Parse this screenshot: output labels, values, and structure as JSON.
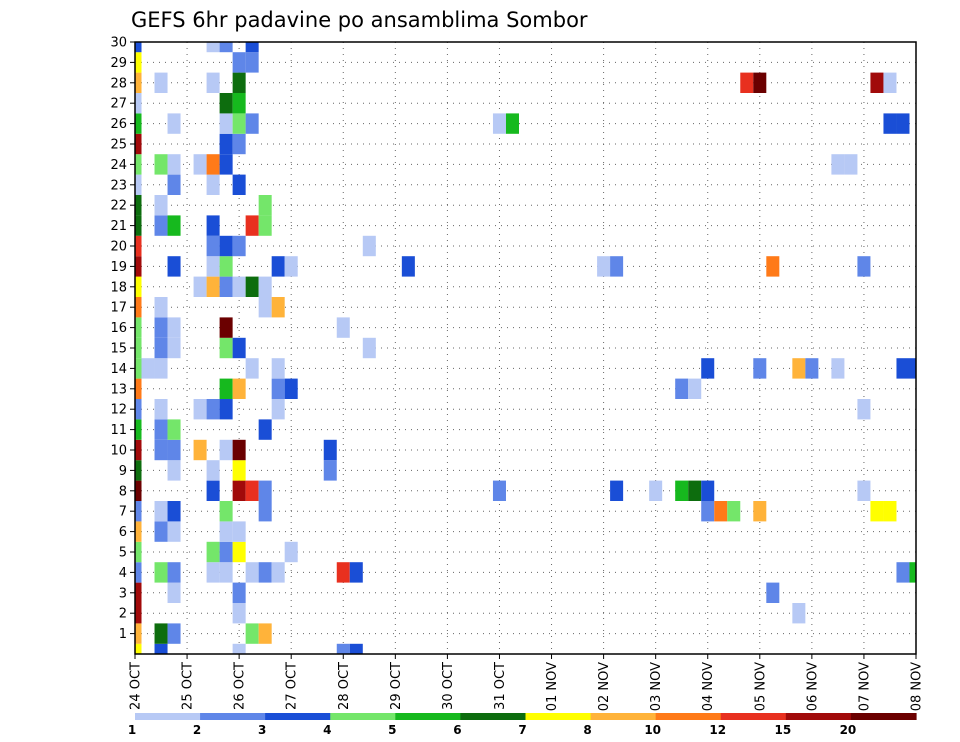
{
  "chart_data": {
    "type": "heatmap",
    "title": "GEFS 6hr padavine po ansamblima Sombor",
    "xlabel": "",
    "ylabel": "",
    "x_axis": {
      "unit": "6-hour steps from 24 OCT 00z",
      "range": [
        0,
        60
      ],
      "ticks": [
        {
          "step": 0,
          "label": "24 OCT"
        },
        {
          "step": 4,
          "label": "25 OCT"
        },
        {
          "step": 8,
          "label": "26 OCT"
        },
        {
          "step": 12,
          "label": "27 OCT"
        },
        {
          "step": 16,
          "label": "28 OCT"
        },
        {
          "step": 20,
          "label": "29 OCT"
        },
        {
          "step": 24,
          "label": "30 OCT"
        },
        {
          "step": 28,
          "label": "31 OCT"
        },
        {
          "step": 32,
          "label": "01 NOV"
        },
        {
          "step": 36,
          "label": "02 NOV"
        },
        {
          "step": 40,
          "label": "03 NOV"
        },
        {
          "step": 44,
          "label": "04 NOV"
        },
        {
          "step": 48,
          "label": "05 NOV"
        },
        {
          "step": 52,
          "label": "06 NOV"
        },
        {
          "step": 56,
          "label": "07 NOV"
        },
        {
          "step": 60,
          "label": "08 NOV"
        }
      ]
    },
    "y_axis": {
      "unit": "ensemble member",
      "range": [
        0,
        30
      ],
      "tick_labels": [
        "1",
        "2",
        "3",
        "4",
        "5",
        "6",
        "7",
        "8",
        "9",
        "10",
        "11",
        "12",
        "13",
        "14",
        "15",
        "16",
        "17",
        "18",
        "19",
        "20",
        "21",
        "22",
        "23",
        "24",
        "25",
        "26",
        "27",
        "28",
        "29",
        "30"
      ]
    },
    "grid": true,
    "colorbar": {
      "position": "bottom",
      "labels": [
        "1",
        "2",
        "3",
        "4",
        "5",
        "6",
        "7",
        "8",
        "10",
        "12",
        "15",
        "20"
      ],
      "colors": [
        "#b7c9f5",
        "#5f86e8",
        "#1a4ed6",
        "#74e66a",
        "#16b91e",
        "#0d6d0e",
        "#ffff00",
        "#ffb33a",
        "#ff7a18",
        "#e8301f",
        "#a10a0a",
        "#6b0000"
      ]
    },
    "cells": [
      [
        0,
        0,
        6
      ],
      [
        2,
        0,
        2
      ],
      [
        8,
        0,
        0
      ],
      [
        16,
        0,
        1
      ],
      [
        17,
        0,
        2
      ],
      [
        0,
        1,
        7
      ],
      [
        2,
        1,
        5
      ],
      [
        3,
        1,
        1
      ],
      [
        9,
        1,
        3
      ],
      [
        10,
        1,
        7
      ],
      [
        0,
        2,
        10
      ],
      [
        8,
        2,
        0
      ],
      [
        8,
        3,
        1
      ],
      [
        51,
        2,
        0
      ],
      [
        0,
        3,
        10
      ],
      [
        3,
        3,
        0
      ],
      [
        49,
        3,
        1
      ],
      [
        0,
        4,
        1
      ],
      [
        2,
        4,
        3
      ],
      [
        3,
        4,
        1
      ],
      [
        6,
        4,
        0
      ],
      [
        7,
        4,
        0
      ],
      [
        9,
        4,
        0
      ],
      [
        10,
        4,
        1
      ],
      [
        11,
        4,
        0
      ],
      [
        16,
        4,
        9
      ],
      [
        17,
        4,
        2
      ],
      [
        59,
        4,
        1
      ],
      [
        60,
        4,
        4
      ],
      [
        0,
        5,
        3
      ],
      [
        6,
        5,
        3
      ],
      [
        7,
        5,
        1
      ],
      [
        8,
        5,
        6
      ],
      [
        12,
        5,
        0
      ],
      [
        0,
        6,
        7
      ],
      [
        2,
        6,
        1
      ],
      [
        3,
        6,
        0
      ],
      [
        7,
        6,
        0
      ],
      [
        8,
        6,
        0
      ],
      [
        0,
        7,
        1
      ],
      [
        2,
        7,
        0
      ],
      [
        3,
        7,
        2
      ],
      [
        7,
        7,
        3
      ],
      [
        10,
        7,
        1
      ],
      [
        44,
        7,
        1
      ],
      [
        45,
        7,
        8
      ],
      [
        46,
        7,
        3
      ],
      [
        48,
        7,
        7
      ],
      [
        57,
        7,
        6
      ],
      [
        58,
        7,
        6
      ],
      [
        0,
        8,
        11
      ],
      [
        6,
        8,
        2
      ],
      [
        8,
        8,
        10
      ],
      [
        9,
        8,
        9
      ],
      [
        10,
        8,
        1
      ],
      [
        28,
        8,
        1
      ],
      [
        37,
        8,
        2
      ],
      [
        40,
        8,
        0
      ],
      [
        42,
        8,
        4
      ],
      [
        43,
        8,
        5
      ],
      [
        44,
        8,
        2
      ],
      [
        56,
        8,
        0
      ],
      [
        0,
        9,
        5
      ],
      [
        3,
        9,
        0
      ],
      [
        6,
        9,
        0
      ],
      [
        8,
        9,
        6
      ],
      [
        15,
        9,
        1
      ],
      [
        0,
        10,
        10
      ],
      [
        2,
        10,
        1
      ],
      [
        3,
        10,
        1
      ],
      [
        5,
        10,
        7
      ],
      [
        7,
        10,
        0
      ],
      [
        8,
        10,
        11
      ],
      [
        15,
        10,
        2
      ],
      [
        0,
        11,
        4
      ],
      [
        2,
        11,
        1
      ],
      [
        3,
        11,
        3
      ],
      [
        10,
        11,
        2
      ],
      [
        0,
        12,
        1
      ],
      [
        2,
        12,
        0
      ],
      [
        5,
        12,
        0
      ],
      [
        6,
        12,
        1
      ],
      [
        7,
        12,
        2
      ],
      [
        11,
        12,
        0
      ],
      [
        56,
        12,
        0
      ],
      [
        0,
        13,
        8
      ],
      [
        7,
        13,
        4
      ],
      [
        8,
        13,
        7
      ],
      [
        11,
        13,
        1
      ],
      [
        12,
        13,
        2
      ],
      [
        42,
        13,
        1
      ],
      [
        43,
        13,
        0
      ],
      [
        0,
        14,
        3
      ],
      [
        1,
        14,
        0
      ],
      [
        2,
        14,
        0
      ],
      [
        9,
        14,
        0
      ],
      [
        11,
        14,
        0
      ],
      [
        44,
        14,
        2
      ],
      [
        48,
        14,
        1
      ],
      [
        51,
        14,
        7
      ],
      [
        52,
        14,
        1
      ],
      [
        54,
        14,
        0
      ],
      [
        59,
        14,
        2
      ],
      [
        60,
        14,
        2
      ],
      [
        0,
        15,
        3
      ],
      [
        2,
        15,
        1
      ],
      [
        3,
        15,
        0
      ],
      [
        7,
        15,
        3
      ],
      [
        8,
        15,
        2
      ],
      [
        18,
        15,
        0
      ],
      [
        0,
        16,
        3
      ],
      [
        2,
        16,
        1
      ],
      [
        3,
        16,
        0
      ],
      [
        7,
        16,
        11
      ],
      [
        16,
        16,
        0
      ],
      [
        0,
        17,
        8
      ],
      [
        2,
        17,
        0
      ],
      [
        10,
        17,
        0
      ],
      [
        11,
        17,
        7
      ],
      [
        0,
        18,
        6
      ],
      [
        5,
        18,
        0
      ],
      [
        6,
        18,
        7
      ],
      [
        7,
        18,
        1
      ],
      [
        8,
        18,
        0
      ],
      [
        9,
        18,
        5
      ],
      [
        10,
        18,
        0
      ],
      [
        0,
        19,
        10
      ],
      [
        3,
        19,
        2
      ],
      [
        6,
        19,
        0
      ],
      [
        7,
        19,
        3
      ],
      [
        11,
        19,
        2
      ],
      [
        12,
        19,
        0
      ],
      [
        21,
        19,
        2
      ],
      [
        36,
        19,
        0
      ],
      [
        37,
        19,
        1
      ],
      [
        49,
        19,
        8
      ],
      [
        56,
        19,
        1
      ],
      [
        0,
        20,
        9
      ],
      [
        6,
        20,
        1
      ],
      [
        7,
        20,
        2
      ],
      [
        8,
        20,
        1
      ],
      [
        18,
        20,
        0
      ],
      [
        0,
        21,
        5
      ],
      [
        2,
        21,
        1
      ],
      [
        3,
        21,
        4
      ],
      [
        6,
        21,
        2
      ],
      [
        9,
        21,
        9
      ],
      [
        10,
        21,
        3
      ],
      [
        0,
        22,
        5
      ],
      [
        2,
        22,
        0
      ],
      [
        10,
        22,
        3
      ],
      [
        0,
        23,
        0
      ],
      [
        3,
        23,
        1
      ],
      [
        6,
        23,
        0
      ],
      [
        8,
        23,
        2
      ],
      [
        0,
        24,
        3
      ],
      [
        2,
        24,
        3
      ],
      [
        3,
        24,
        0
      ],
      [
        5,
        24,
        0
      ],
      [
        6,
        24,
        8
      ],
      [
        7,
        24,
        2
      ],
      [
        54,
        24,
        0
      ],
      [
        55,
        24,
        0
      ],
      [
        0,
        25,
        10
      ],
      [
        7,
        25,
        2
      ],
      [
        8,
        25,
        1
      ],
      [
        0,
        26,
        4
      ],
      [
        3,
        26,
        0
      ],
      [
        7,
        26,
        0
      ],
      [
        8,
        26,
        3
      ],
      [
        9,
        26,
        1
      ],
      [
        28,
        26,
        0
      ],
      [
        29,
        26,
        4
      ],
      [
        58,
        26,
        2
      ],
      [
        59,
        26,
        2
      ],
      [
        0,
        27,
        0
      ],
      [
        7,
        27,
        5
      ],
      [
        8,
        27,
        4
      ],
      [
        0,
        28,
        7
      ],
      [
        2,
        28,
        0
      ],
      [
        6,
        28,
        0
      ],
      [
        8,
        28,
        5
      ],
      [
        47,
        28,
        9
      ],
      [
        48,
        28,
        11
      ],
      [
        57,
        28,
        10
      ],
      [
        58,
        28,
        0
      ],
      [
        0,
        29,
        6
      ],
      [
        8,
        29,
        1
      ],
      [
        9,
        29,
        1
      ],
      [
        0,
        30,
        2
      ],
      [
        6,
        30,
        0
      ],
      [
        7,
        30,
        1
      ],
      [
        9,
        30,
        2
      ]
    ]
  }
}
